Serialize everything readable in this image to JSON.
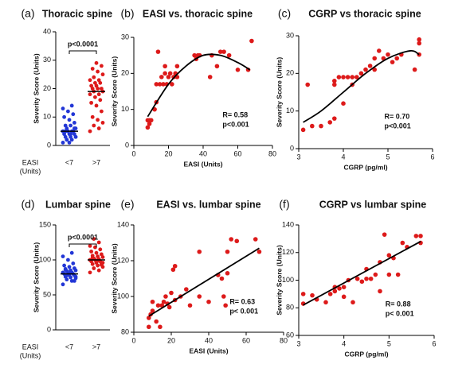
{
  "chart_data": [
    {
      "type": "strip",
      "label": "(a)",
      "title": "Thoracic spine",
      "y_label": "Severity Score (Units)",
      "x_label_lines": [
        "EASI",
        "(Units)"
      ],
      "categories": [
        "<7",
        ">7"
      ],
      "annotation": "p<0.0001",
      "series": [
        {
          "color": "#2236d6",
          "mean": 5,
          "values": [
            1,
            2,
            2,
            3,
            3,
            3,
            4,
            4,
            4,
            5,
            5,
            5,
            5,
            6,
            6,
            7,
            7,
            8,
            9,
            10,
            11,
            12,
            13,
            14,
            2,
            3,
            4,
            5,
            6,
            1
          ]
        },
        {
          "color": "#dd1a1a",
          "mean": 19,
          "values": [
            5,
            6,
            7,
            8,
            9,
            10,
            12,
            14,
            15,
            16,
            17,
            18,
            18,
            19,
            19,
            20,
            20,
            20,
            21,
            21,
            22,
            22,
            23,
            23,
            24,
            25,
            26,
            27,
            28,
            29
          ]
        }
      ],
      "ylim": [
        0,
        40
      ],
      "yticks": [
        0,
        10,
        20,
        30,
        40
      ]
    },
    {
      "type": "scatter",
      "label": "(b)",
      "title": "EASI vs. thoracic spine",
      "y_label": "Severity Score (Units)",
      "x_label": "EASI (Units)",
      "color": "#dd1a1a",
      "x": [
        8,
        8,
        9,
        9,
        10,
        12,
        13,
        13,
        14,
        15,
        16,
        17,
        18,
        18,
        19,
        20,
        21,
        22,
        23,
        24,
        25,
        25,
        35,
        36,
        37,
        38,
        44,
        45,
        48,
        50,
        52,
        55,
        60,
        66,
        68
      ],
      "values": [
        5,
        7,
        6,
        7,
        7,
        10,
        12,
        17,
        26,
        17,
        19,
        17,
        20,
        22,
        17,
        19,
        20,
        17,
        19,
        20,
        22,
        19,
        25,
        24,
        25,
        25,
        19,
        25,
        22,
        26,
        26,
        25,
        21,
        21,
        29
      ],
      "fit": {
        "x": [
          8,
          20,
          30,
          40,
          50,
          60,
          67
        ],
        "values": [
          8,
          17,
          22,
          25,
          25,
          23,
          21
        ]
      },
      "annotations": [
        "R= 0.58",
        "p<0.001"
      ],
      "xlim": [
        0,
        80
      ],
      "xticks": [
        0,
        20,
        40,
        60,
        80
      ],
      "ylim": [
        0,
        30
      ],
      "yticks": [
        0,
        10,
        20,
        30
      ]
    },
    {
      "type": "scatter",
      "label": "(c)",
      "title": "CGRP vs thoracic spine",
      "y_label": "Severity Score (Units)",
      "x_label": "CGRP (pg/ml)",
      "color": "#dd1a1a",
      "x": [
        3.1,
        3.2,
        3.3,
        3.5,
        3.7,
        3.8,
        3.8,
        3.8,
        3.9,
        4.0,
        4.0,
        4.1,
        4.2,
        4.2,
        4.3,
        4.5,
        4.6,
        4.7,
        4.7,
        4.8,
        4.9,
        5.0,
        5.1,
        5.2,
        5.3,
        5.6,
        5.7,
        5.7,
        5.7,
        4.4
      ],
      "values": [
        5,
        17,
        6,
        6,
        7,
        8,
        17,
        18,
        19,
        12,
        19,
        19,
        19,
        17,
        19,
        21,
        22,
        21,
        24,
        26,
        24,
        25,
        23,
        24,
        25,
        21,
        25,
        28,
        29,
        20
      ],
      "fit": {
        "x": [
          3.1,
          3.5,
          4,
          4.5,
          5,
          5.5,
          5.7
        ],
        "values": [
          7,
          10,
          15,
          20,
          24,
          26,
          25
        ]
      },
      "annotations": [
        "R= 0.70",
        "p<0.001"
      ],
      "xlim": [
        3,
        6
      ],
      "xticks": [
        3,
        4,
        5,
        6
      ],
      "ylim": [
        0,
        30
      ],
      "yticks": [
        0,
        10,
        20,
        30
      ]
    },
    {
      "type": "strip",
      "label": "(d)",
      "title": "Lumbar spine",
      "y_label": "Severity Score (Units)",
      "x_label_lines": [
        "EASI",
        "(Units)"
      ],
      "categories": [
        "<7",
        ">7"
      ],
      "annotation": "p<0.0001",
      "series": [
        {
          "color": "#2236d6",
          "mean": 80,
          "values": [
            65,
            70,
            72,
            74,
            75,
            76,
            78,
            78,
            80,
            80,
            80,
            82,
            82,
            84,
            85,
            85,
            86,
            88,
            90,
            92,
            95,
            100,
            105,
            110,
            78,
            76,
            83,
            87,
            70,
            81
          ]
        },
        {
          "color": "#dd1a1a",
          "mean": 100,
          "values": [
            82,
            85,
            88,
            90,
            92,
            94,
            95,
            96,
            98,
            98,
            100,
            100,
            101,
            102,
            104,
            105,
            106,
            108,
            110,
            112,
            115,
            118,
            120,
            125,
            130,
            96,
            99,
            103,
            93,
            97
          ]
        }
      ],
      "ylim": [
        0,
        150
      ],
      "yticks": [
        0,
        50,
        100,
        150
      ]
    },
    {
      "type": "scatter",
      "label": "(e)",
      "title": "EASI vs. lumbar spine",
      "y_label": "Severity Score (Units)",
      "x_label": "EASI (Units)",
      "color": "#dd1a1a",
      "x": [
        8,
        8,
        9,
        10,
        10,
        12,
        13,
        14,
        15,
        16,
        17,
        18,
        19,
        20,
        21,
        22,
        22,
        25,
        28,
        30,
        35,
        35,
        40,
        45,
        47,
        48,
        50,
        50,
        52,
        55,
        65,
        67,
        49
      ],
      "values": [
        83,
        88,
        90,
        92,
        97,
        86,
        95,
        83,
        95,
        97,
        100,
        96,
        94,
        102,
        115,
        117,
        98,
        100,
        104,
        95,
        100,
        125,
        97,
        112,
        110,
        100,
        113,
        125,
        132,
        131,
        132,
        125,
        95
      ],
      "fit": {
        "x": [
          8,
          67
        ],
        "values": [
          89,
          127
        ]
      },
      "annotations": [
        "R= 0.63",
        "p< 0.001"
      ],
      "xlim": [
        0,
        80
      ],
      "xticks": [
        0,
        20,
        40,
        60,
        80
      ],
      "ylim": [
        80,
        140
      ],
      "yticks": [
        80,
        100,
        120,
        140
      ]
    },
    {
      "type": "scatter",
      "label": "(f)",
      "title": "CGRP vs lumbar spine",
      "y_label": "Severity Score (Units)",
      "x_label": "CGRP (pg/ml)",
      "color": "#dd1a1a",
      "x": [
        3.1,
        3.1,
        3.3,
        3.4,
        3.6,
        3.7,
        3.8,
        3.8,
        3.9,
        4.0,
        4.0,
        4.1,
        4.2,
        4.3,
        4.4,
        4.5,
        4.5,
        4.6,
        4.7,
        4.8,
        4.8,
        4.9,
        5.0,
        5.0,
        5.1,
        5.2,
        5.3,
        5.4,
        5.6,
        5.7,
        5.7
      ],
      "values": [
        83,
        90,
        89,
        86,
        84,
        90,
        92,
        95,
        94,
        88,
        95,
        100,
        84,
        101,
        99,
        101,
        108,
        101,
        104,
        113,
        92,
        133,
        104,
        118,
        116,
        104,
        127,
        124,
        132,
        127,
        132
      ],
      "fit": {
        "x": [
          3.1,
          5.7
        ],
        "values": [
          82,
          128
        ]
      },
      "annotations": [
        "R= 0.88",
        "p< 0.001"
      ],
      "xlim": [
        3,
        6
      ],
      "xticks": [
        3,
        4,
        5,
        6
      ],
      "ylim": [
        60,
        140
      ],
      "yticks": [
        60,
        80,
        100,
        120,
        140
      ]
    }
  ]
}
